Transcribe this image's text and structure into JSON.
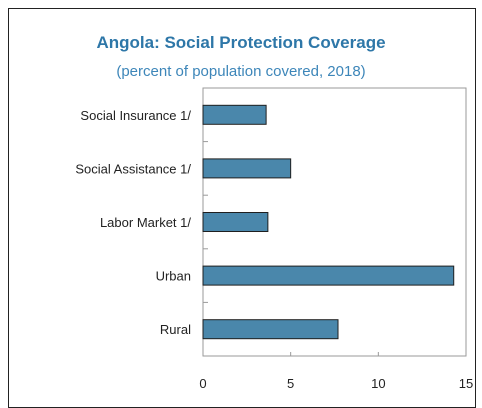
{
  "chart_data": {
    "type": "bar",
    "orientation": "horizontal",
    "title": "Angola: Social Protection Coverage",
    "subtitle": "(percent of population covered, 2018)",
    "categories": [
      "Social Insurance 1/",
      "Social Assistance 1/",
      "Labor Market 1/",
      "Urban",
      "Rural"
    ],
    "values": [
      3.6,
      5.0,
      3.7,
      14.3,
      7.7
    ],
    "xlim": [
      0,
      15
    ],
    "xticks": [
      "0",
      "5",
      "10",
      "15"
    ],
    "xlabel": "",
    "ylabel": "",
    "grid": false,
    "legend": "none",
    "colors": {
      "bar": "#4a87ab",
      "bar_edge": "#1f1f1f",
      "title": "#2e77a8",
      "subtitle": "#3d86b9"
    }
  }
}
